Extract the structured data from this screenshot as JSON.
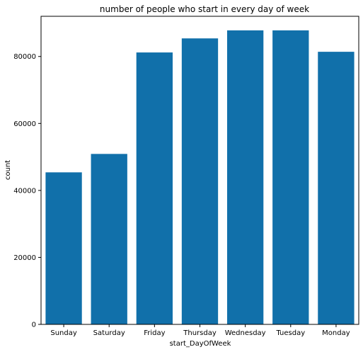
{
  "chart_data": {
    "type": "bar",
    "title": "number of people who start in every day of week",
    "xlabel": "start_DayOfWeek",
    "ylabel": "count",
    "categories": [
      "Sunday",
      "Saturday",
      "Friday",
      "Thursday",
      "Wednesday",
      "Tuesday",
      "Monday"
    ],
    "values": [
      45400,
      50900,
      81200,
      85400,
      87800,
      87800,
      81400
    ],
    "ylim": [
      0,
      92000
    ],
    "yticks": [
      0,
      20000,
      40000,
      60000,
      80000
    ],
    "grid": false,
    "legend": "none",
    "bar_color": "#1170aa"
  }
}
